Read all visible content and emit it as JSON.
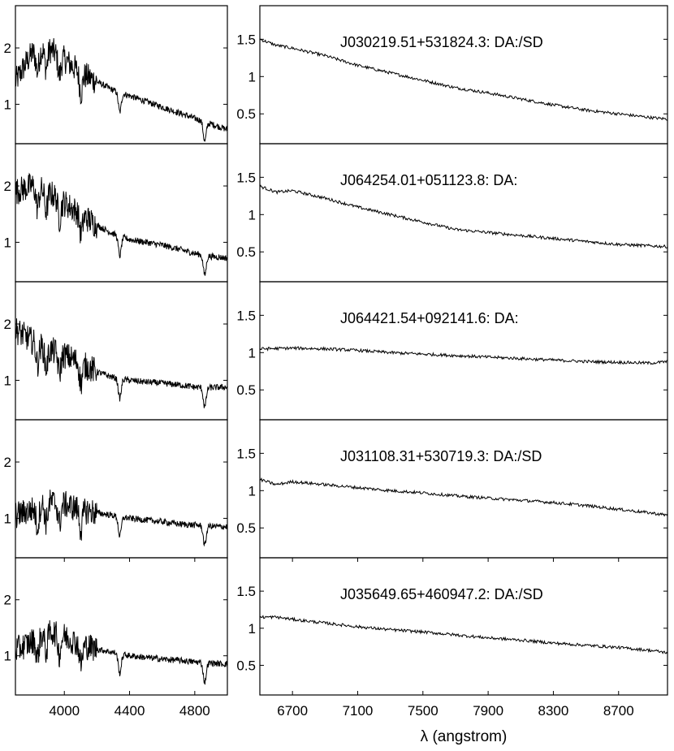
{
  "figure": {
    "xlabel": "λ (angstrom)"
  },
  "chart_data": [
    {
      "type": "line",
      "column": "left",
      "xlim": [
        3700,
        5000
      ],
      "ylim": [
        0.3,
        2.75
      ],
      "yticks": [
        1,
        2
      ],
      "xticks": [],
      "series": [
        {
          "x": [
            3700,
            3800,
            3900,
            4000,
            4100,
            4200,
            4300,
            4400,
            4500,
            4600,
            4700,
            4800,
            4900,
            5000
          ],
          "y": [
            1.4,
            1.9,
            2.0,
            1.8,
            1.55,
            1.4,
            1.25,
            1.15,
            1.05,
            0.95,
            0.85,
            0.75,
            0.65,
            0.55
          ]
        }
      ],
      "absorption_lines": [
        3835,
        3889,
        3970,
        4102,
        4340,
        4861
      ]
    },
    {
      "type": "line",
      "column": "right",
      "title": "J030219.51+531824.3: DA:/SD",
      "xlim": [
        6500,
        9000
      ],
      "ylim": [
        0.1,
        1.95
      ],
      "yticks": [
        0.5,
        1,
        1.5
      ],
      "xticks": [],
      "series": [
        {
          "x": [
            6500,
            6600,
            6700,
            6900,
            7100,
            7300,
            7500,
            7700,
            7900,
            8100,
            8300,
            8500,
            8700,
            8900,
            9000
          ],
          "y": [
            1.5,
            1.42,
            1.38,
            1.28,
            1.15,
            1.05,
            0.95,
            0.85,
            0.78,
            0.7,
            0.62,
            0.55,
            0.5,
            0.45,
            0.43
          ]
        }
      ]
    },
    {
      "type": "line",
      "column": "left",
      "xlim": [
        3700,
        5000
      ],
      "ylim": [
        0.3,
        2.75
      ],
      "yticks": [
        1,
        2
      ],
      "xticks": [],
      "series": [
        {
          "x": [
            3700,
            3800,
            3900,
            4000,
            4100,
            4200,
            4300,
            4400,
            4500,
            4600,
            4700,
            4800,
            4900,
            5000
          ],
          "y": [
            1.9,
            2.0,
            1.9,
            1.7,
            1.5,
            1.3,
            1.15,
            1.05,
            1.0,
            0.95,
            0.88,
            0.8,
            0.75,
            0.72
          ]
        }
      ],
      "absorption_lines": [
        3835,
        3889,
        3970,
        4102,
        4340,
        4861
      ]
    },
    {
      "type": "line",
      "column": "right",
      "title": "J064254.01+051123.8: DA:",
      "xlim": [
        6500,
        9000
      ],
      "ylim": [
        0.1,
        1.95
      ],
      "yticks": [
        0.5,
        1,
        1.5
      ],
      "xticks": [],
      "series": [
        {
          "x": [
            6500,
            6600,
            6700,
            6900,
            7100,
            7300,
            7500,
            7600,
            7700,
            7900,
            8100,
            8300,
            8500,
            8700,
            8900,
            9000
          ],
          "y": [
            1.38,
            1.3,
            1.32,
            1.22,
            1.1,
            1.0,
            0.9,
            0.85,
            0.8,
            0.76,
            0.72,
            0.68,
            0.64,
            0.6,
            0.58,
            0.57
          ]
        }
      ]
    },
    {
      "type": "line",
      "column": "left",
      "xlim": [
        3700,
        5000
      ],
      "ylim": [
        0.3,
        2.75
      ],
      "yticks": [
        1,
        2
      ],
      "xticks": [],
      "series": [
        {
          "x": [
            3700,
            3800,
            3900,
            4000,
            4100,
            4200,
            4300,
            4400,
            4500,
            4600,
            4700,
            4800,
            4900,
            5000
          ],
          "y": [
            1.9,
            1.7,
            1.55,
            1.45,
            1.3,
            1.15,
            1.05,
            1.0,
            0.97,
            0.95,
            0.92,
            0.88,
            0.87,
            0.88
          ]
        }
      ],
      "absorption_lines": [
        3835,
        3889,
        3970,
        4102,
        4340,
        4861
      ]
    },
    {
      "type": "line",
      "column": "right",
      "title": "J064421.54+092141.6: DA:",
      "xlim": [
        6500,
        9000
      ],
      "ylim": [
        0.1,
        1.95
      ],
      "yticks": [
        0.5,
        1,
        1.5
      ],
      "xticks": [],
      "series": [
        {
          "x": [
            6500,
            6700,
            6900,
            7100,
            7300,
            7500,
            7700,
            7900,
            8100,
            8300,
            8500,
            8700,
            8900,
            9000
          ],
          "y": [
            1.05,
            1.06,
            1.05,
            1.03,
            1.0,
            0.98,
            0.96,
            0.94,
            0.92,
            0.9,
            0.88,
            0.87,
            0.86,
            0.88
          ]
        }
      ]
    },
    {
      "type": "line",
      "column": "left",
      "xlim": [
        3700,
        5000
      ],
      "ylim": [
        0.3,
        2.75
      ],
      "yticks": [
        1,
        2
      ],
      "xticks": [],
      "series": [
        {
          "x": [
            3700,
            3800,
            3900,
            4000,
            4100,
            4200,
            4300,
            4400,
            4500,
            4600,
            4700,
            4800,
            4900,
            5000
          ],
          "y": [
            1.05,
            1.15,
            1.3,
            1.25,
            1.15,
            1.1,
            1.05,
            1.0,
            0.97,
            0.94,
            0.9,
            0.88,
            0.86,
            0.85
          ]
        }
      ],
      "absorption_lines": [
        3835,
        3889,
        3970,
        4102,
        4340,
        4861
      ]
    },
    {
      "type": "line",
      "column": "right",
      "title": "J031108.31+530719.3: DA:/SD",
      "xlim": [
        6500,
        9000
      ],
      "ylim": [
        0.1,
        1.95
      ],
      "yticks": [
        0.5,
        1,
        1.5
      ],
      "xticks": [],
      "series": [
        {
          "x": [
            6500,
            6600,
            6700,
            6900,
            7100,
            7300,
            7500,
            7700,
            7900,
            8100,
            8300,
            8500,
            8700,
            8900,
            9000
          ],
          "y": [
            1.15,
            1.08,
            1.12,
            1.08,
            1.04,
            1.0,
            0.97,
            0.93,
            0.9,
            0.87,
            0.84,
            0.8,
            0.75,
            0.7,
            0.67
          ]
        }
      ]
    },
    {
      "type": "line",
      "column": "left",
      "xlim": [
        3700,
        5000
      ],
      "ylim": [
        0.3,
        2.75
      ],
      "yticks": [
        1,
        2
      ],
      "xticks": [
        3700,
        4000,
        4400,
        4800,
        5000
      ],
      "xticklabels_shown": [
        "4000",
        "4400",
        "4800"
      ],
      "series": [
        {
          "x": [
            3700,
            3800,
            3900,
            4000,
            4100,
            4200,
            4300,
            4400,
            4500,
            4600,
            4700,
            4800,
            4900,
            5000
          ],
          "y": [
            1.1,
            1.25,
            1.45,
            1.35,
            1.2,
            1.12,
            1.06,
            1.0,
            0.97,
            0.94,
            0.92,
            0.89,
            0.87,
            0.85
          ]
        }
      ],
      "absorption_lines": [
        3835,
        3889,
        3970,
        4102,
        4340,
        4861
      ]
    },
    {
      "type": "line",
      "column": "right",
      "title": "J035649.65+460947.2: DA:/SD",
      "xlim": [
        6500,
        9000
      ],
      "ylim": [
        0.1,
        1.95
      ],
      "yticks": [
        0.5,
        1,
        1.5
      ],
      "xticks": [
        6700,
        7100,
        7500,
        7900,
        8300,
        8700
      ],
      "series": [
        {
          "x": [
            6500,
            6600,
            6700,
            6900,
            7100,
            7300,
            7500,
            7700,
            7900,
            8100,
            8300,
            8500,
            8700,
            8900,
            9000
          ],
          "y": [
            1.15,
            1.15,
            1.12,
            1.07,
            1.02,
            0.98,
            0.95,
            0.91,
            0.87,
            0.84,
            0.8,
            0.77,
            0.74,
            0.7,
            0.67
          ]
        }
      ]
    }
  ]
}
